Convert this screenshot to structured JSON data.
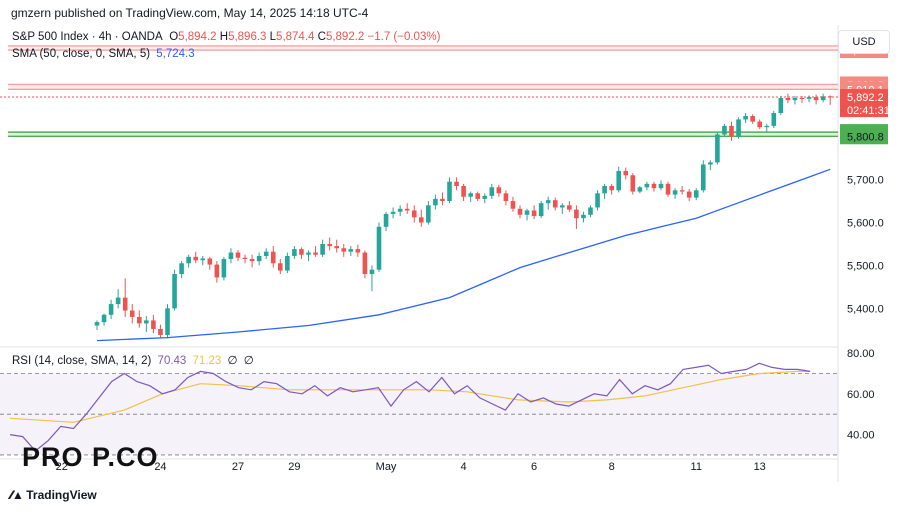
{
  "header": {
    "publisher": "gmzern published on TradingView.com, May 14, 2025 14:18 UTC-4"
  },
  "legend": {
    "symbol": "S&P 500 Index · 4h · OANDA",
    "o_label": "O",
    "o_value": "5,894.2",
    "h_label": "H",
    "h_value": "5,896.3",
    "l_label": "L",
    "l_value": "5,874.4",
    "c_label": "C",
    "c_value": "5,892.2",
    "change": "−1.7 (−0.03%)",
    "sma_label": "SMA (50, close, 0, SMA, 5)",
    "sma_value": "5,724.3",
    "rsi_label": "RSI (14, close, SMA, 14, 2)",
    "rsi_value": "70.43",
    "rsi_sma_value": "71.23",
    "rsi_extra1": "∅",
    "rsi_extra2": "∅"
  },
  "currency_button": "USD",
  "branding": {
    "watermark": "PRO P.CO",
    "footer": "TradingView"
  },
  "colors": {
    "up": "#26a69a",
    "down": "#ef5350",
    "sma": "#2962ff",
    "rsi": "#7e57c2",
    "rsi_sma": "#f0c24a",
    "resistance": "#f7a1a1",
    "support": "#4caf50"
  },
  "chart_data": [
    {
      "type": "candlestick",
      "xlabel": "",
      "ylabel": "",
      "x_ticks": [
        "22",
        "24",
        "27",
        "29",
        "May",
        "4",
        "6",
        "8",
        "11",
        "13"
      ],
      "y_ticks": [
        "5,400.0",
        "5,500.0",
        "5,600.0",
        "5,700.0"
      ],
      "ylim": [
        5310,
        6060
      ],
      "candles": [
        [
          5360,
          5372,
          5350,
          5368
        ],
        [
          5368,
          5388,
          5360,
          5385
        ],
        [
          5385,
          5420,
          5375,
          5410
        ],
        [
          5410,
          5445,
          5400,
          5425
        ],
        [
          5425,
          5470,
          5380,
          5395
        ],
        [
          5395,
          5410,
          5365,
          5380
        ],
        [
          5380,
          5395,
          5355,
          5365
        ],
        [
          5365,
          5382,
          5345,
          5372
        ],
        [
          5372,
          5385,
          5342,
          5352
        ],
        [
          5352,
          5362,
          5330,
          5338
        ],
        [
          5338,
          5410,
          5330,
          5400
        ],
        [
          5400,
          5490,
          5395,
          5480
        ],
        [
          5480,
          5510,
          5470,
          5505
        ],
        [
          5505,
          5525,
          5495,
          5520
        ],
        [
          5520,
          5532,
          5505,
          5512
        ],
        [
          5512,
          5522,
          5500,
          5516
        ],
        [
          5516,
          5520,
          5490,
          5502
        ],
        [
          5502,
          5510,
          5460,
          5472
        ],
        [
          5472,
          5520,
          5465,
          5515
        ],
        [
          5515,
          5540,
          5505,
          5530
        ],
        [
          5530,
          5536,
          5510,
          5518
        ],
        [
          5518,
          5525,
          5505,
          5515
        ],
        [
          5515,
          5525,
          5495,
          5510
        ],
        [
          5510,
          5530,
          5500,
          5522
        ],
        [
          5522,
          5540,
          5515,
          5532
        ],
        [
          5532,
          5545,
          5495,
          5505
        ],
        [
          5505,
          5515,
          5480,
          5488
        ],
        [
          5488,
          5530,
          5482,
          5522
        ],
        [
          5522,
          5545,
          5515,
          5538
        ],
        [
          5538,
          5542,
          5515,
          5525
        ],
        [
          5525,
          5535,
          5510,
          5530
        ],
        [
          5530,
          5545,
          5520,
          5525
        ],
        [
          5525,
          5560,
          5520,
          5550
        ],
        [
          5550,
          5565,
          5535,
          5545
        ],
        [
          5545,
          5560,
          5530,
          5540
        ],
        [
          5540,
          5550,
          5520,
          5532
        ],
        [
          5532,
          5545,
          5522,
          5538
        ],
        [
          5538,
          5548,
          5520,
          5530
        ],
        [
          5530,
          5535,
          5470,
          5480
        ],
        [
          5480,
          5500,
          5440,
          5490
        ],
        [
          5490,
          5600,
          5485,
          5590
        ],
        [
          5590,
          5625,
          5580,
          5620
        ],
        [
          5620,
          5635,
          5610,
          5625
        ],
        [
          5625,
          5640,
          5615,
          5632
        ],
        [
          5632,
          5645,
          5620,
          5628
        ],
        [
          5628,
          5640,
          5600,
          5612
        ],
        [
          5612,
          5630,
          5590,
          5600
        ],
        [
          5600,
          5650,
          5595,
          5640
        ],
        [
          5640,
          5665,
          5630,
          5655
        ],
        [
          5655,
          5670,
          5640,
          5650
        ],
        [
          5650,
          5705,
          5645,
          5695
        ],
        [
          5695,
          5705,
          5675,
          5685
        ],
        [
          5685,
          5690,
          5650,
          5660
        ],
        [
          5660,
          5672,
          5648,
          5668
        ],
        [
          5668,
          5672,
          5650,
          5655
        ],
        [
          5655,
          5668,
          5645,
          5662
        ],
        [
          5662,
          5690,
          5655,
          5682
        ],
        [
          5682,
          5688,
          5660,
          5668
        ],
        [
          5668,
          5675,
          5640,
          5650
        ],
        [
          5650,
          5660,
          5625,
          5632
        ],
        [
          5632,
          5640,
          5610,
          5618
        ],
        [
          5618,
          5632,
          5605,
          5628
        ],
        [
          5628,
          5640,
          5608,
          5615
        ],
        [
          5615,
          5650,
          5610,
          5645
        ],
        [
          5645,
          5660,
          5630,
          5652
        ],
        [
          5652,
          5658,
          5628,
          5635
        ],
        [
          5635,
          5645,
          5620,
          5640
        ],
        [
          5640,
          5650,
          5625,
          5630
        ],
        [
          5630,
          5640,
          5585,
          5610
        ],
        [
          5610,
          5625,
          5600,
          5618
        ],
        [
          5618,
          5640,
          5612,
          5635
        ],
        [
          5635,
          5675,
          5628,
          5668
        ],
        [
          5668,
          5690,
          5655,
          5685
        ],
        [
          5685,
          5690,
          5665,
          5675
        ],
        [
          5675,
          5730,
          5670,
          5720
        ],
        [
          5720,
          5728,
          5700,
          5710
        ],
        [
          5710,
          5715,
          5665,
          5672
        ],
        [
          5672,
          5685,
          5668,
          5682
        ],
        [
          5682,
          5695,
          5675,
          5690
        ],
        [
          5690,
          5695,
          5672,
          5680
        ],
        [
          5680,
          5698,
          5675,
          5690
        ],
        [
          5690,
          5695,
          5660,
          5665
        ],
        [
          5665,
          5680,
          5655,
          5675
        ],
        [
          5675,
          5685,
          5665,
          5672
        ],
        [
          5672,
          5678,
          5650,
          5658
        ],
        [
          5658,
          5680,
          5652,
          5675
        ],
        [
          5675,
          5745,
          5670,
          5735
        ],
        [
          5735,
          5745,
          5722,
          5740
        ],
        [
          5740,
          5810,
          5735,
          5805
        ],
        [
          5805,
          5830,
          5800,
          5825
        ],
        [
          5825,
          5835,
          5790,
          5800
        ],
        [
          5800,
          5845,
          5795,
          5840
        ],
        [
          5840,
          5855,
          5832,
          5848
        ],
        [
          5848,
          5852,
          5830,
          5835
        ],
        [
          5835,
          5840,
          5818,
          5822
        ],
        [
          5822,
          5830,
          5810,
          5825
        ],
        [
          5825,
          5860,
          5820,
          5855
        ],
        [
          5855,
          5895,
          5850,
          5890
        ],
        [
          5890,
          5900,
          5878,
          5885
        ],
        [
          5885,
          5895,
          5875,
          5890
        ],
        [
          5890,
          5895,
          5878,
          5888
        ],
        [
          5888,
          5896,
          5880,
          5892
        ],
        [
          5892,
          5898,
          5875,
          5885
        ],
        [
          5885,
          5900,
          5880,
          5894
        ],
        [
          5894,
          5896,
          5874,
          5892
        ]
      ],
      "sma50": [
        [
          0,
          5325
        ],
        [
          10,
          5332
        ],
        [
          20,
          5345
        ],
        [
          30,
          5360
        ],
        [
          40,
          5385
        ],
        [
          50,
          5425
        ],
        [
          55,
          5460
        ],
        [
          60,
          5495
        ],
        [
          65,
          5520
        ],
        [
          70,
          5545
        ],
        [
          75,
          5570
        ],
        [
          80,
          5590
        ],
        [
          85,
          5610
        ],
        [
          90,
          5640
        ],
        [
          95,
          5670
        ],
        [
          100,
          5700
        ],
        [
          104,
          5724
        ]
      ],
      "levels": [
        {
          "value": "6,011.2",
          "role": "resistance"
        },
        {
          "value": "6,001.7",
          "role": "resistance"
        },
        {
          "value": "5,921.5",
          "role": "resistance"
        },
        {
          "value": "5,910.1",
          "role": "resistance"
        },
        {
          "value": "5,810.5",
          "role": "support"
        },
        {
          "value": "5,800.8",
          "role": "support"
        }
      ],
      "last_price": "5,892.2",
      "countdown": "02:41:31"
    },
    {
      "type": "line",
      "xlabel": "",
      "ylabel": "",
      "y_ticks": [
        "40.00",
        "60.00",
        "80.00"
      ],
      "ylim": [
        28,
        83
      ],
      "bands": [
        70,
        50,
        30
      ],
      "rsi": [
        [
          0,
          40
        ],
        [
          2,
          39
        ],
        [
          4,
          32
        ],
        [
          6,
          37
        ],
        [
          8,
          44
        ],
        [
          10,
          43
        ],
        [
          12,
          50
        ],
        [
          14,
          58
        ],
        [
          16,
          66
        ],
        [
          18,
          70
        ],
        [
          20,
          66
        ],
        [
          22,
          64
        ],
        [
          24,
          60
        ],
        [
          26,
          62
        ],
        [
          28,
          68
        ],
        [
          30,
          71
        ],
        [
          32,
          70
        ],
        [
          34,
          66
        ],
        [
          36,
          63
        ],
        [
          38,
          62
        ],
        [
          40,
          66
        ],
        [
          42,
          65
        ],
        [
          44,
          61
        ],
        [
          46,
          60
        ],
        [
          48,
          64
        ],
        [
          50,
          59
        ],
        [
          52,
          63
        ],
        [
          54,
          61
        ],
        [
          56,
          62
        ],
        [
          58,
          63
        ],
        [
          60,
          54
        ],
        [
          62,
          62
        ],
        [
          64,
          66
        ],
        [
          66,
          61
        ],
        [
          68,
          68
        ],
        [
          70,
          60
        ],
        [
          72,
          64
        ],
        [
          74,
          58
        ],
        [
          76,
          55
        ],
        [
          78,
          52
        ],
        [
          80,
          60
        ],
        [
          82,
          56
        ],
        [
          84,
          58
        ],
        [
          86,
          55
        ],
        [
          88,
          54
        ],
        [
          90,
          57
        ],
        [
          92,
          60
        ],
        [
          94,
          59
        ],
        [
          96,
          67
        ],
        [
          98,
          60
        ],
        [
          100,
          64
        ],
        [
          102,
          62
        ],
        [
          104,
          65
        ],
        [
          106,
          72
        ],
        [
          108,
          73
        ],
        [
          110,
          74
        ],
        [
          112,
          70
        ],
        [
          114,
          71
        ],
        [
          116,
          72
        ],
        [
          118,
          75
        ],
        [
          120,
          73
        ],
        [
          122,
          72
        ],
        [
          124,
          72
        ],
        [
          126,
          71
        ]
      ],
      "rsi_sma": [
        [
          0,
          48
        ],
        [
          10,
          46
        ],
        [
          18,
          52
        ],
        [
          24,
          60
        ],
        [
          30,
          65
        ],
        [
          36,
          64
        ],
        [
          44,
          62
        ],
        [
          50,
          62
        ],
        [
          58,
          62
        ],
        [
          66,
          62
        ],
        [
          72,
          61
        ],
        [
          80,
          57
        ],
        [
          88,
          56
        ],
        [
          94,
          57
        ],
        [
          100,
          59
        ],
        [
          106,
          63
        ],
        [
          112,
          67
        ],
        [
          118,
          70
        ],
        [
          124,
          71
        ],
        [
          126,
          71
        ]
      ]
    }
  ]
}
